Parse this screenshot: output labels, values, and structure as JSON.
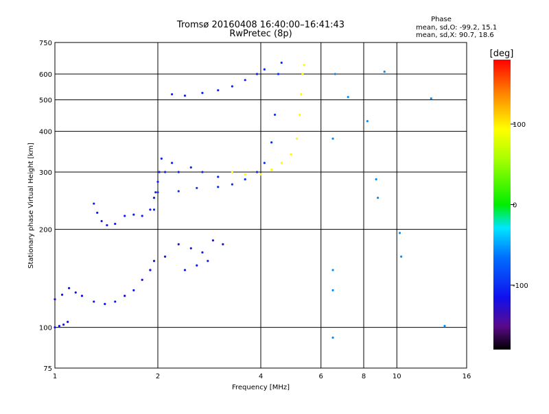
{
  "chart_data": {
    "type": "scatter",
    "title": "Tromsø 20160408 16:40:00–16:41:43",
    "subtitle": "RwPretec (8p)",
    "xlabel": "Frequency [MHz]",
    "ylabel": "Stationary phase Virtual Height [km]",
    "xscale": "log",
    "yscale": "log",
    "xlim": [
      1,
      16
    ],
    "ylim": [
      75,
      750
    ],
    "x_ticks": [
      1,
      2,
      4,
      6,
      8,
      10,
      16
    ],
    "x_tick_labels": [
      "1",
      "2",
      "4",
      "6",
      "8",
      "10",
      "16"
    ],
    "y_ticks": [
      75,
      100,
      200,
      300,
      400,
      500,
      600,
      750
    ],
    "y_tick_labels": [
      "75",
      "100",
      "200",
      "300",
      "400",
      "500",
      "600",
      "750"
    ],
    "grid": true,
    "stats": {
      "title": "Phase",
      "line_o": "mean, sd,O: -99.2, 15.1",
      "line_x": "mean, sd,X:  90.7, 18.6"
    },
    "colorbar": {
      "label": "[deg]",
      "range": [
        -180,
        180
      ],
      "ticks": [
        100,
        0,
        -100
      ],
      "tick_labels": [
        "100",
        "0",
        "-100"
      ]
    },
    "series": [
      {
        "trace": "low-o-base",
        "phase": -115,
        "points": [
          [
            1.0,
            100
          ],
          [
            1.03,
            101
          ],
          [
            1.06,
            102
          ],
          [
            1.09,
            104
          ],
          [
            1.0,
            122
          ],
          [
            1.05,
            126
          ],
          [
            1.1,
            132
          ],
          [
            1.15,
            128
          ],
          [
            1.2,
            125
          ],
          [
            1.3,
            120
          ],
          [
            1.4,
            118
          ],
          [
            1.5,
            120
          ],
          [
            1.6,
            125
          ],
          [
            1.7,
            130
          ],
          [
            1.8,
            140
          ],
          [
            1.9,
            150
          ],
          [
            1.95,
            160
          ]
        ]
      },
      {
        "trace": "o-cusp-e",
        "phase": -110,
        "points": [
          [
            1.3,
            240
          ],
          [
            1.33,
            225
          ],
          [
            1.37,
            212
          ],
          [
            1.42,
            206
          ],
          [
            1.5,
            208
          ],
          [
            1.6,
            220
          ],
          [
            1.7,
            222
          ],
          [
            1.8,
            220
          ],
          [
            1.9,
            230
          ],
          [
            1.95,
            250
          ]
        ]
      },
      {
        "trace": "o-spread-f",
        "phase": -105,
        "points": [
          [
            1.95,
            230
          ],
          [
            1.97,
            260
          ],
          [
            2.0,
            280
          ],
          [
            2.02,
            300
          ],
          [
            2.05,
            330
          ],
          [
            2.1,
            300
          ],
          [
            2.2,
            320
          ],
          [
            2.3,
            300
          ],
          [
            2.5,
            310
          ],
          [
            2.7,
            300
          ],
          [
            3.0,
            290
          ]
        ]
      },
      {
        "trace": "o-f-main",
        "phase": -100,
        "points": [
          [
            2.0,
            260
          ],
          [
            2.3,
            262
          ],
          [
            2.6,
            268
          ],
          [
            3.0,
            270
          ],
          [
            3.3,
            275
          ],
          [
            3.6,
            285
          ],
          [
            3.9,
            300
          ],
          [
            4.1,
            320
          ],
          [
            4.3,
            370
          ],
          [
            4.4,
            450
          ],
          [
            4.5,
            600
          ],
          [
            4.6,
            650
          ]
        ]
      },
      {
        "trace": "o-f-upper",
        "phase": -108,
        "points": [
          [
            2.2,
            520
          ],
          [
            2.4,
            515
          ],
          [
            2.7,
            525
          ],
          [
            3.0,
            535
          ],
          [
            3.3,
            550
          ],
          [
            3.6,
            575
          ],
          [
            3.9,
            600
          ],
          [
            4.1,
            620
          ]
        ]
      },
      {
        "trace": "o-mid-spread",
        "phase": -112,
        "points": [
          [
            1.9,
            150
          ],
          [
            2.1,
            165
          ],
          [
            2.3,
            180
          ],
          [
            2.5,
            175
          ],
          [
            2.7,
            170
          ],
          [
            2.9,
            185
          ],
          [
            3.1,
            180
          ],
          [
            2.4,
            150
          ],
          [
            2.6,
            155
          ],
          [
            2.8,
            160
          ]
        ]
      },
      {
        "trace": "x-f-main",
        "phase": 95,
        "points": [
          [
            3.3,
            300
          ],
          [
            3.6,
            295
          ],
          [
            4.0,
            295
          ],
          [
            4.3,
            305
          ],
          [
            4.6,
            320
          ],
          [
            4.9,
            340
          ],
          [
            5.1,
            380
          ],
          [
            5.2,
            450
          ],
          [
            5.25,
            520
          ],
          [
            5.3,
            600
          ],
          [
            5.35,
            640
          ]
        ]
      },
      {
        "trace": "high-freq-scatter",
        "phase": -60,
        "points": [
          [
            6.5,
            150
          ],
          [
            6.5,
            130
          ],
          [
            6.5,
            93
          ],
          [
            6.5,
            380
          ],
          [
            6.6,
            600
          ],
          [
            7.2,
            510
          ],
          [
            8.2,
            430
          ],
          [
            8.7,
            285
          ],
          [
            8.8,
            250
          ],
          [
            9.2,
            610
          ],
          [
            10.2,
            195
          ],
          [
            10.3,
            165
          ],
          [
            12.6,
            505
          ],
          [
            13.8,
            101
          ]
        ]
      }
    ]
  }
}
